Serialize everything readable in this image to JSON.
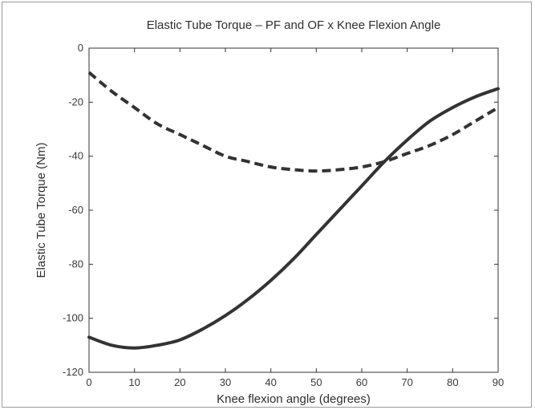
{
  "chart_data": {
    "type": "line",
    "title": "Elastic Tube Torque – PF and OF x Knee Flexion Angle",
    "xlabel": "Knee flexion angle (degrees)",
    "ylabel": "Elastic Tube Torque (Nm)",
    "xlim": [
      0,
      90
    ],
    "ylim": [
      -120,
      0
    ],
    "xticks": [
      0,
      10,
      20,
      30,
      40,
      50,
      60,
      70,
      80,
      90
    ],
    "yticks": [
      0,
      -20,
      -40,
      -60,
      -80,
      -100,
      -120
    ],
    "grid": false,
    "series": [
      {
        "style": "solid",
        "color": "#333333",
        "x": [
          0,
          5,
          10,
          15,
          20,
          25,
          30,
          35,
          40,
          45,
          50,
          55,
          60,
          65,
          70,
          75,
          80,
          85,
          90
        ],
        "y": [
          -107,
          -110,
          -111,
          -110,
          -108,
          -104,
          -99,
          -93,
          -86,
          -78,
          -69,
          -60,
          -51,
          -42,
          -34,
          -27,
          -22,
          -18,
          -15
        ]
      },
      {
        "style": "dashed",
        "color": "#333333",
        "x": [
          0,
          5,
          10,
          15,
          20,
          25,
          30,
          35,
          40,
          45,
          50,
          55,
          60,
          65,
          70,
          75,
          80,
          85,
          90
        ],
        "y": [
          -9,
          -16,
          -22,
          -28,
          -32,
          -36,
          -40,
          -42,
          -44,
          -45,
          -45.5,
          -45,
          -44,
          -42,
          -39,
          -36,
          -32,
          -27,
          -22
        ]
      }
    ]
  }
}
